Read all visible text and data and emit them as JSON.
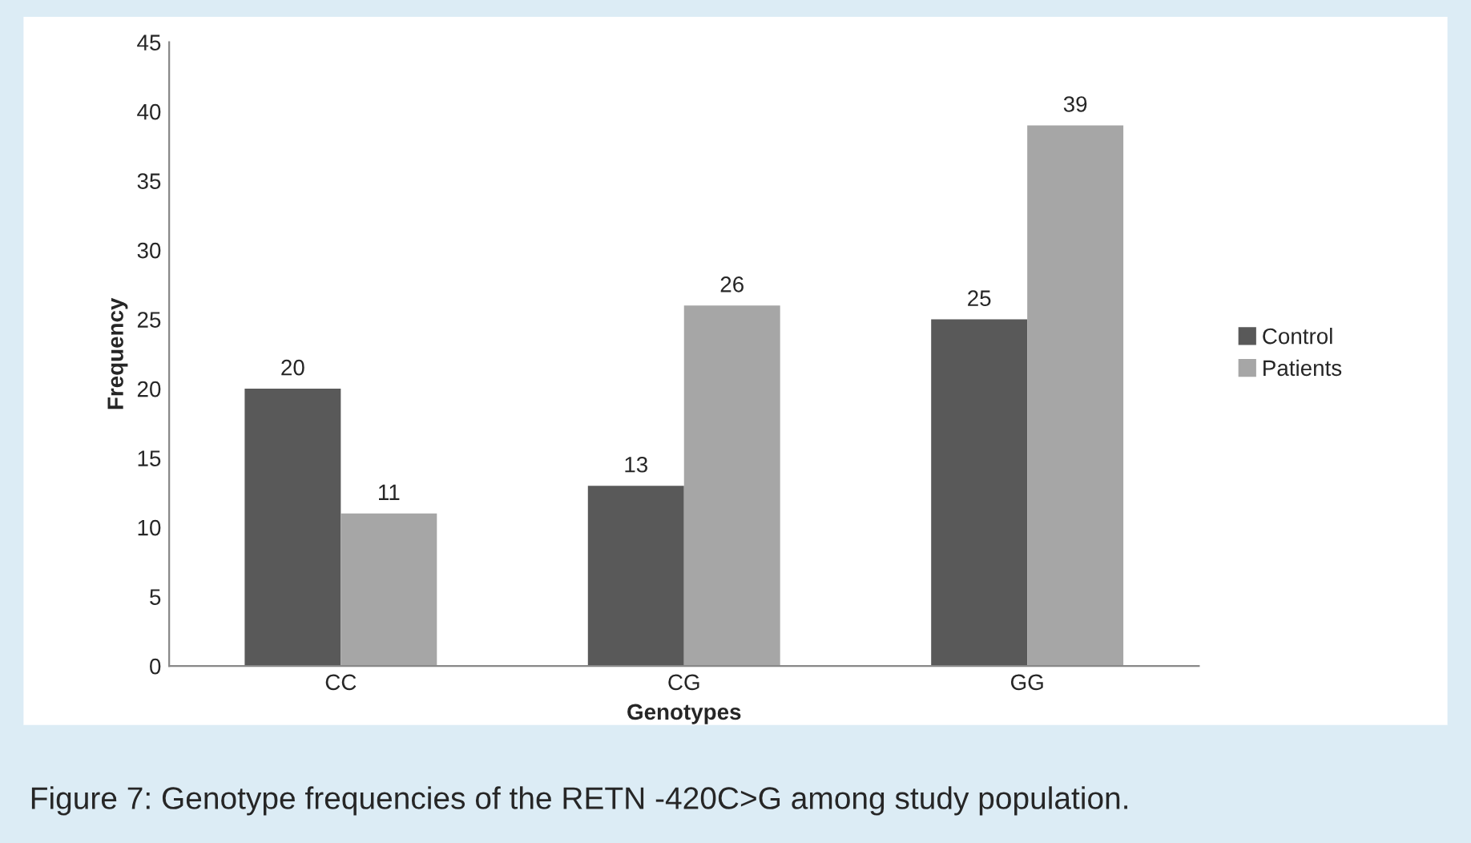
{
  "chart_data": {
    "type": "bar",
    "xlabel": "Genotypes",
    "ylabel": "Frequency",
    "categories": [
      "CC",
      "CG",
      "GG"
    ],
    "series": [
      {
        "name": "Control",
        "color": "#595959",
        "values": [
          20,
          13,
          25
        ]
      },
      {
        "name": "Patients",
        "color": "#a6a6a6",
        "values": [
          11,
          26,
          39
        ]
      }
    ],
    "ylim": [
      0,
      45
    ],
    "yticks": [
      0,
      5,
      10,
      15,
      20,
      25,
      30,
      35,
      40,
      45
    ],
    "grid": false,
    "legend": "right",
    "data_labels": true,
    "annotations": [
      "Figure 7: Genotype frequencies of the RETN -420C>G among study population."
    ]
  }
}
